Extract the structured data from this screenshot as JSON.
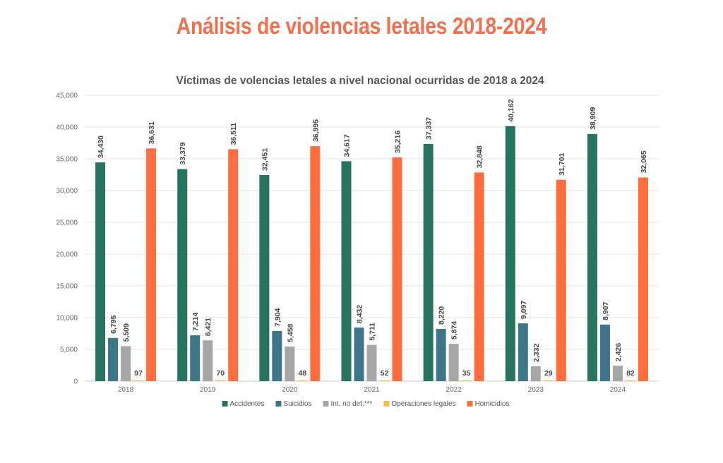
{
  "page": {
    "title": "Análisis de violencias letales 2018-2024",
    "title_color": "#f0704f"
  },
  "chart_data": {
    "type": "bar",
    "title": "Víctimas de volencias letales a nivel nacional ocurridas de 2018 a 2024",
    "xlabel": "",
    "ylabel": "",
    "ylim": [
      0,
      45000
    ],
    "yticks": [
      0,
      5000,
      10000,
      15000,
      20000,
      25000,
      30000,
      35000,
      40000,
      45000
    ],
    "ytick_labels": [
      "0",
      "5,000",
      "10,000",
      "15,000",
      "20,000",
      "25,000",
      "30,000",
      "35,000",
      "40,000",
      "45,000"
    ],
    "grid": true,
    "legend_position": "bottom",
    "categories": [
      "2018",
      "2019",
      "2020",
      "2021",
      "2022",
      "2023",
      "2024"
    ],
    "series": [
      {
        "name": "Accidentes",
        "color": "#26735f",
        "values": [
          34430,
          33379,
          32451,
          34617,
          37337,
          40162,
          38909
        ],
        "labels": [
          "34,430",
          "33,379",
          "32,451",
          "34,617",
          "37,337",
          "40,162",
          "38,909"
        ]
      },
      {
        "name": "Suicidios",
        "color": "#3d7589",
        "values": [
          6795,
          7214,
          7904,
          8432,
          8220,
          9097,
          8907
        ],
        "labels": [
          "6,795",
          "7,214",
          "7,904",
          "8,432",
          "8,220",
          "9,097",
          "8,907"
        ]
      },
      {
        "name": "Int. no det.***",
        "color": "#a6a6a6",
        "values": [
          5509,
          6421,
          5458,
          5711,
          5874,
          2332,
          2426
        ],
        "labels": [
          "5,509",
          "6,421",
          "5,458",
          "5,711",
          "5,874",
          "2,332",
          "2,426"
        ]
      },
      {
        "name": "Operaciones legales",
        "color": "#f6bb4a",
        "values": [
          97,
          70,
          48,
          52,
          35,
          29,
          82
        ],
        "labels": [
          "97",
          "70",
          "48",
          "52",
          "35",
          "29",
          "82"
        ]
      },
      {
        "name": "Homicidios",
        "color": "#ff6e3f",
        "values": [
          36631,
          36511,
          36995,
          35216,
          32848,
          31701,
          32065
        ],
        "labels": [
          "36,631",
          "36,511",
          "36,995",
          "35,216",
          "32,848",
          "31,701",
          "32,065"
        ]
      }
    ]
  }
}
